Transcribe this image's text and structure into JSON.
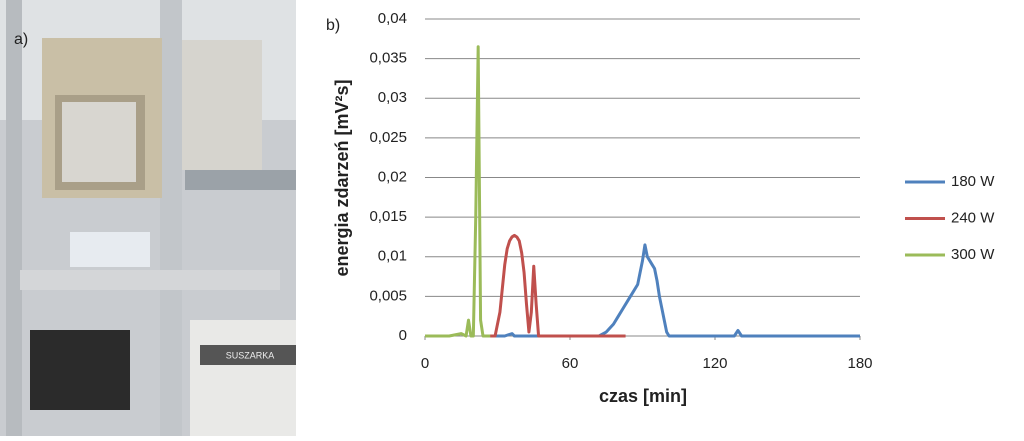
{
  "panel_labels": [
    "a)",
    "b)"
  ],
  "photo_label": "SUSZARKA",
  "chart_data": {
    "type": "line",
    "x_label": "czas [min]",
    "y_label": "energia zdarzeń [mV²s]",
    "xlim": [
      0,
      180
    ],
    "xticks": [
      0,
      60,
      120,
      180
    ],
    "ylim": [
      0,
      0.04
    ],
    "yticks": [
      0,
      {
        "value": 0.005,
        "label": "0,005"
      },
      {
        "value": 0.01,
        "label": "0,01"
      },
      {
        "value": 0.015,
        "label": "0,015"
      },
      {
        "value": 0.02,
        "label": "0,02"
      },
      {
        "value": 0.025,
        "label": "0,025"
      },
      {
        "value": 0.03,
        "label": "0,03"
      },
      {
        "value": 0.035,
        "label": "0,035"
      },
      {
        "value": 0.04,
        "label": "0,04"
      }
    ],
    "grid": true,
    "legend": "right",
    "series": [
      {
        "name": "180 W",
        "color": "#4f81bd",
        "x": [
          28,
          33,
          36,
          37,
          50,
          70,
          72,
          75,
          78,
          80,
          82,
          84,
          86,
          88,
          89,
          90,
          91,
          92,
          93,
          94,
          95,
          96,
          97,
          98,
          99,
          100,
          101,
          110,
          128,
          129.5,
          131,
          140,
          150,
          180
        ],
        "values": [
          0,
          0,
          0.0003,
          0,
          0,
          0,
          0,
          0.0005,
          0.0015,
          0.0025,
          0.0035,
          0.0045,
          0.0055,
          0.0065,
          0.008,
          0.0095,
          0.0115,
          0.01,
          0.0095,
          0.009,
          0.0085,
          0.007,
          0.005,
          0.0035,
          0.002,
          0.0005,
          0,
          0,
          0,
          0.0007,
          0,
          0,
          0,
          0
        ]
      },
      {
        "name": "240 W",
        "color": "#c0504d",
        "x": [
          26,
          29,
          31,
          32,
          33,
          34,
          35,
          36,
          37,
          38,
          39,
          40,
          41,
          42,
          43,
          44,
          45,
          46,
          47,
          50,
          60,
          70,
          83
        ],
        "values": [
          0,
          0,
          0.003,
          0.006,
          0.009,
          0.011,
          0.012,
          0.0125,
          0.0127,
          0.0125,
          0.012,
          0.0105,
          0.008,
          0.004,
          0.0005,
          0.003,
          0.0088,
          0.004,
          0,
          0,
          0,
          0,
          0
        ]
      },
      {
        "name": "300 W",
        "color": "#9bbb59",
        "x": [
          0,
          10,
          15,
          17,
          18,
          19,
          20,
          21,
          22,
          23,
          24,
          27
        ],
        "values": [
          0,
          0,
          0.0003,
          0,
          0.002,
          0,
          0,
          0.015,
          0.0365,
          0.002,
          0,
          0
        ]
      }
    ]
  }
}
